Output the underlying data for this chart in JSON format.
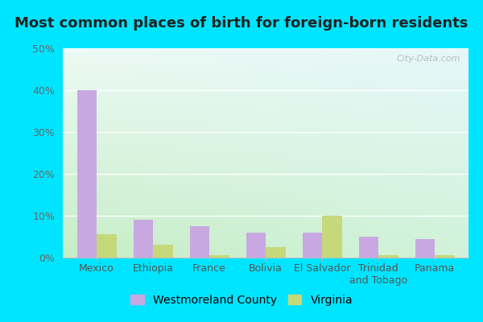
{
  "title": "Most common places of birth for foreign-born residents",
  "categories": [
    "Mexico",
    "Ethiopia",
    "France",
    "Bolivia",
    "El Salvador",
    "Trinidad\nand Tobago",
    "Panama"
  ],
  "westmoreland_values": [
    40,
    9,
    7.5,
    6,
    6,
    5,
    4.5
  ],
  "virginia_values": [
    5.5,
    3,
    0.5,
    2.5,
    10,
    0.5,
    0.5
  ],
  "bar_color_westmoreland": "#c9a8e2",
  "bar_color_virginia": "#c5d87a",
  "background_outer": "#00e5ff",
  "ylim": [
    0,
    50
  ],
  "yticks": [
    0,
    10,
    20,
    30,
    40,
    50
  ],
  "ytick_labels": [
    "0%",
    "10%",
    "20%",
    "30%",
    "40%",
    "50%"
  ],
  "legend_westmoreland": "Westmoreland County",
  "legend_virginia": "Virginia",
  "title_fontsize": 13,
  "tick_fontsize": 9,
  "legend_fontsize": 10,
  "watermark": "City-Data.com"
}
